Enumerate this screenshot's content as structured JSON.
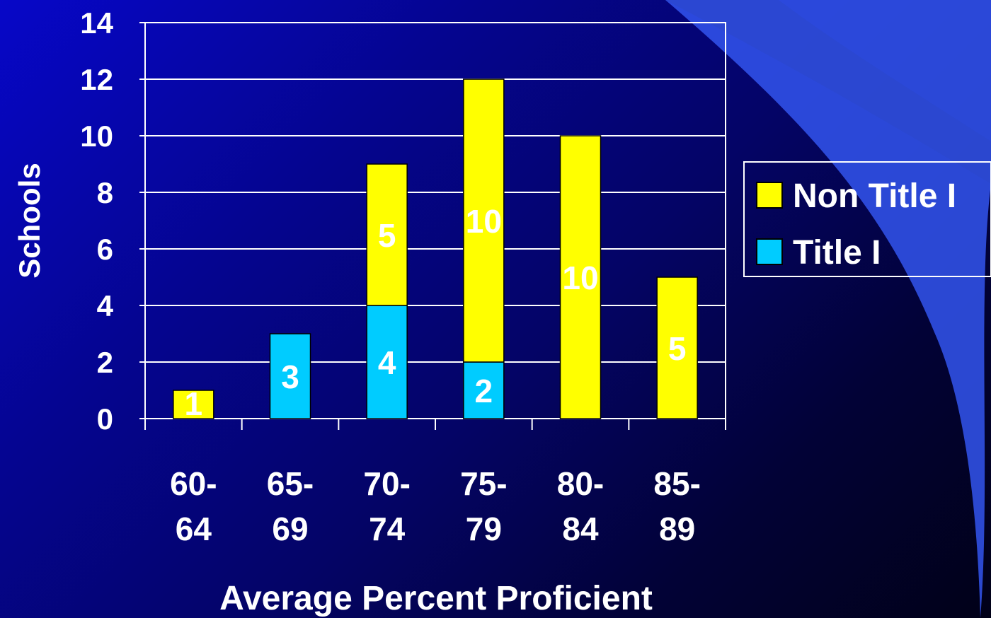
{
  "chart_data": {
    "type": "bar",
    "stacked": true,
    "categories": [
      "60-64",
      "65-69",
      "70-74",
      "75-79",
      "80-84",
      "85-89"
    ],
    "tick_labels": [
      [
        "60-",
        "64"
      ],
      [
        "65-",
        "69"
      ],
      [
        "70-",
        "74"
      ],
      [
        "75-",
        "79"
      ],
      [
        "80-",
        "84"
      ],
      [
        "85-",
        "89"
      ]
    ],
    "series": [
      {
        "name": "Title I",
        "values": [
          0,
          3,
          4,
          2,
          0,
          0
        ],
        "color": "#00ccff"
      },
      {
        "name": "Non Title I",
        "values": [
          1,
          0,
          5,
          10,
          10,
          5
        ],
        "color": "#ffff00"
      }
    ],
    "xlabel": "Average Percent Proficient",
    "ylabel": "Schools",
    "ylim": [
      0,
      14
    ],
    "yticks": [
      0,
      2,
      4,
      6,
      8,
      10,
      12,
      14
    ],
    "grid": true,
    "legend_position": "right",
    "legend_order": [
      "Non Title I",
      "Title I"
    ]
  },
  "colors": {
    "text": "#ffffff",
    "axis": "#ffffff",
    "accent_swoosh": "#3355ee"
  }
}
